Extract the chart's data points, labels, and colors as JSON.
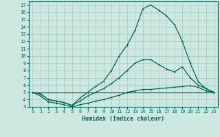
{
  "xlabel": "Humidex (Indice chaleur)",
  "bg_color": "#cce8e0",
  "grid_color": "#b0d4cc",
  "line_color": "#006655",
  "xlim": [
    -0.5,
    23.5
  ],
  "ylim": [
    3,
    17.5
  ],
  "yticks": [
    3,
    4,
    5,
    6,
    7,
    8,
    9,
    10,
    11,
    12,
    13,
    14,
    15,
    16,
    17
  ],
  "xticks": [
    0,
    1,
    2,
    3,
    4,
    5,
    6,
    7,
    8,
    9,
    10,
    11,
    12,
    13,
    14,
    15,
    16,
    17,
    18,
    19,
    20,
    21,
    22,
    23
  ],
  "line1_x": [
    0,
    1,
    2,
    3,
    4,
    5,
    6,
    7,
    8,
    9,
    10,
    11,
    12,
    13,
    14,
    15,
    16,
    17,
    18,
    19,
    20,
    21,
    22,
    23
  ],
  "line1_y": [
    5.0,
    4.5,
    3.7,
    3.5,
    3.3,
    3.0,
    3.3,
    3.5,
    3.8,
    4.0,
    4.3,
    4.6,
    5.0,
    5.2,
    5.4,
    5.4,
    5.5,
    5.6,
    5.7,
    5.8,
    5.9,
    5.7,
    5.2,
    5.0
  ],
  "line2_x": [
    0,
    1,
    2,
    3,
    4,
    5,
    6,
    7,
    8,
    9,
    10,
    11,
    12,
    13,
    14,
    15,
    16,
    17,
    18,
    19,
    20,
    21,
    22,
    23
  ],
  "line2_y": [
    5.0,
    4.8,
    4.0,
    3.8,
    3.6,
    3.2,
    3.8,
    4.5,
    5.0,
    5.5,
    6.2,
    7.0,
    8.0,
    9.0,
    9.5,
    9.5,
    8.8,
    8.2,
    7.8,
    8.5,
    7.0,
    6.0,
    5.5,
    5.0
  ],
  "line3_x": [
    0,
    1,
    2,
    3,
    4,
    5,
    6,
    7,
    8,
    9,
    10,
    11,
    12,
    13,
    14,
    15,
    16,
    17,
    18,
    19,
    20,
    21,
    22,
    23
  ],
  "line3_y": [
    5.0,
    4.8,
    4.0,
    3.8,
    3.6,
    3.2,
    4.2,
    5.0,
    5.8,
    6.5,
    8.0,
    10.0,
    11.5,
    13.5,
    16.5,
    17.0,
    16.3,
    15.5,
    14.3,
    12.0,
    9.0,
    6.5,
    5.5,
    5.0
  ],
  "line4_x": [
    0,
    23
  ],
  "line4_y": [
    5.0,
    5.0
  ]
}
